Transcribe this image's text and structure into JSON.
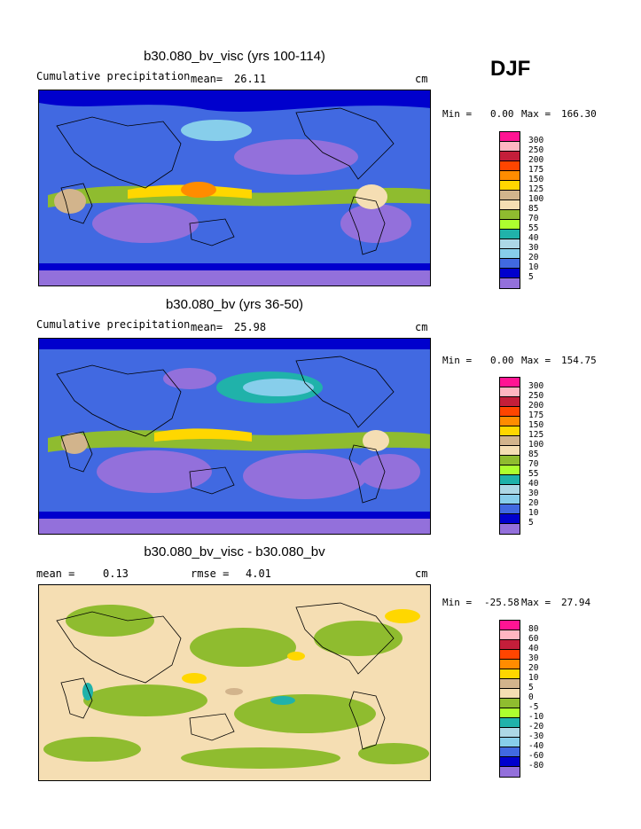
{
  "season": "DJF",
  "panels": [
    {
      "title": "b30.080_bv_visc (yrs 100-114)",
      "left_label": "Cumulative precipitation",
      "mean_label": "mean=",
      "mean_value": "26.11",
      "units": "cm",
      "min_label": "Min =",
      "min_value": "0.00",
      "max_label": "Max =",
      "max_value": "166.30"
    },
    {
      "title": "b30.080_bv (yrs 36-50)",
      "left_label": "Cumulative precipitation",
      "mean_label": "mean=",
      "mean_value": "25.98",
      "units": "cm",
      "min_label": "Min =",
      "min_value": "0.00",
      "max_label": "Max =",
      "max_value": "154.75"
    },
    {
      "title": "b30.080_bv_visc - b30.080_bv",
      "mean_label": "mean =",
      "mean_value": "0.13",
      "rmse_label": "rmse =",
      "rmse_value": "4.01",
      "units": "cm",
      "min_label": "Min =",
      "min_value": "-25.58",
      "max_label": "Max =",
      "max_value": "27.94"
    }
  ],
  "colorbars": {
    "precip": {
      "labels": [
        "300",
        "250",
        "200",
        "175",
        "150",
        "125",
        "100",
        "85",
        "70",
        "55",
        "40",
        "30",
        "20",
        "10",
        "5"
      ],
      "colors": [
        "#ff1493",
        "#ffb6c1",
        "#c41e3a",
        "#ff4500",
        "#ff8c00",
        "#ffd700",
        "#d2b48c",
        "#f5deb3",
        "#8fbc2f",
        "#adff2f",
        "#20b2aa",
        "#add8e6",
        "#87ceeb",
        "#4169e1",
        "#0000cd",
        "#9370db"
      ]
    },
    "diff": {
      "labels": [
        "80",
        "60",
        "40",
        "30",
        "20",
        "10",
        "5",
        "0",
        "-5",
        "-10",
        "-20",
        "-30",
        "-40",
        "-60",
        "-80"
      ],
      "colors": [
        "#ff1493",
        "#ffb6c1",
        "#c41e3a",
        "#ff4500",
        "#ff8c00",
        "#ffd700",
        "#d2b48c",
        "#f5deb3",
        "#8fbc2f",
        "#adff2f",
        "#20b2aa",
        "#add8e6",
        "#87ceeb",
        "#4169e1",
        "#0000cd",
        "#9370db"
      ]
    }
  }
}
